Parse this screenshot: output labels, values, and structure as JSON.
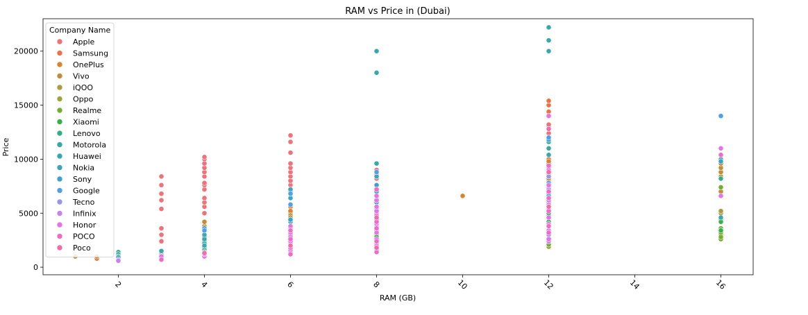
{
  "chart_data": {
    "type": "scatter",
    "title": "RAM vs Price in (Dubai)",
    "xlabel": "RAM (GB)",
    "ylabel": "Price",
    "xlim": [
      0.25,
      16.75
    ],
    "ylim": [
      -700,
      23000
    ],
    "xticks": [
      2,
      4,
      6,
      8,
      10,
      12,
      14,
      16
    ],
    "yticks": [
      0,
      5000,
      10000,
      15000,
      20000
    ],
    "grid": false,
    "legend": {
      "title": "Company Name",
      "placement": "top-left"
    },
    "series": [
      {
        "name": "Apple",
        "color": "#f0717a",
        "points": [
          [
            3,
            2400
          ],
          [
            3,
            3000
          ],
          [
            3,
            3600
          ],
          [
            3,
            5400
          ],
          [
            3,
            6200
          ],
          [
            3,
            6800
          ],
          [
            3,
            7600
          ],
          [
            3,
            8400
          ],
          [
            4,
            4200
          ],
          [
            4,
            5000
          ],
          [
            4,
            5600
          ],
          [
            4,
            6000
          ],
          [
            4,
            6400
          ],
          [
            4,
            7200
          ],
          [
            4,
            7600
          ],
          [
            4,
            7800
          ],
          [
            4,
            8400
          ],
          [
            4,
            8800
          ],
          [
            4,
            9200
          ],
          [
            4,
            9600
          ],
          [
            4,
            10000
          ],
          [
            4,
            10200
          ],
          [
            6,
            6400
          ],
          [
            6,
            7000
          ],
          [
            6,
            7600
          ],
          [
            6,
            8000
          ],
          [
            6,
            8400
          ],
          [
            6,
            8800
          ],
          [
            6,
            9200
          ],
          [
            6,
            9600
          ],
          [
            6,
            10600
          ],
          [
            6,
            11600
          ],
          [
            6,
            12200
          ],
          [
            8,
            8200
          ],
          [
            8,
            8600
          ],
          [
            8,
            9000
          ],
          [
            12,
            7000
          ],
          [
            12,
            8000
          ],
          [
            12,
            8800
          ],
          [
            12,
            9200
          ],
          [
            12,
            10000
          ],
          [
            12,
            11000
          ],
          [
            12,
            11600
          ],
          [
            12,
            12400
          ],
          [
            12,
            13000
          ],
          [
            12,
            13200
          ]
        ]
      },
      {
        "name": "Samsung",
        "color": "#ee7243",
        "points": [
          [
            1.5,
            800
          ],
          [
            3,
            1200
          ],
          [
            4,
            2800
          ],
          [
            6,
            5000
          ],
          [
            6,
            5600
          ],
          [
            8,
            2200
          ],
          [
            12,
            9600
          ],
          [
            12,
            10000
          ],
          [
            12,
            14400
          ],
          [
            12,
            15000
          ],
          [
            12,
            15400
          ]
        ]
      },
      {
        "name": "OnePlus",
        "color": "#d7842f",
        "points": [
          [
            4,
            3800
          ],
          [
            6,
            5200
          ],
          [
            8,
            1800
          ],
          [
            10,
            6600
          ],
          [
            12,
            8200
          ],
          [
            12,
            8600
          ],
          [
            12,
            9800
          ]
        ]
      },
      {
        "name": "Vivo",
        "color": "#c08e39",
        "points": [
          [
            1,
            1000
          ],
          [
            1.5,
            1000
          ],
          [
            4,
            4200
          ],
          [
            6,
            4800
          ],
          [
            12,
            2000
          ],
          [
            16,
            7000
          ],
          [
            16,
            8400
          ],
          [
            16,
            8800
          ],
          [
            16,
            9200
          ],
          [
            16,
            9600
          ]
        ]
      },
      {
        "name": "iQOO",
        "color": "#ac9c3d",
        "points": [
          [
            6,
            4600
          ],
          [
            12,
            4800
          ],
          [
            16,
            5000
          ],
          [
            16,
            5200
          ]
        ]
      },
      {
        "name": "Oppo",
        "color": "#9ba539",
        "points": [
          [
            4,
            2000
          ],
          [
            6,
            4400
          ],
          [
            8,
            1700
          ],
          [
            12,
            1900
          ],
          [
            16,
            3000
          ],
          [
            16,
            4400
          ]
        ]
      },
      {
        "name": "Realme",
        "color": "#73ae31",
        "points": [
          [
            4,
            2400
          ],
          [
            6,
            3600
          ],
          [
            8,
            3000
          ],
          [
            12,
            2100
          ],
          [
            16,
            2600
          ],
          [
            16,
            2800
          ],
          [
            16,
            3200
          ],
          [
            16,
            3600
          ],
          [
            16,
            7400
          ]
        ]
      },
      {
        "name": "Xiaomi",
        "color": "#33b249",
        "points": [
          [
            4,
            1800
          ],
          [
            6,
            3000
          ],
          [
            8,
            2800
          ],
          [
            12,
            4200
          ],
          [
            16,
            3400
          ],
          [
            16,
            4200
          ]
        ]
      },
      {
        "name": "Lenovo",
        "color": "#35ae88",
        "points": [
          [
            2,
            1400
          ],
          [
            4,
            1600
          ],
          [
            6,
            3200
          ],
          [
            12,
            5000
          ],
          [
            16,
            8200
          ]
        ]
      },
      {
        "name": "Motorola",
        "color": "#37aaa0",
        "points": [
          [
            2,
            1200
          ],
          [
            2,
            800
          ],
          [
            3,
            1400
          ],
          [
            4,
            2200
          ],
          [
            6,
            4200
          ],
          [
            8,
            3400
          ],
          [
            12,
            6000
          ],
          [
            12,
            11000
          ]
        ]
      },
      {
        "name": "Huawei",
        "color": "#39a8ac",
        "points": [
          [
            2,
            1000
          ],
          [
            3,
            1500
          ],
          [
            4,
            2600
          ],
          [
            6,
            4400
          ],
          [
            8,
            9600
          ],
          [
            8,
            18000
          ],
          [
            8,
            20000
          ],
          [
            12,
            10400
          ],
          [
            12,
            11600
          ],
          [
            12,
            20000
          ],
          [
            12,
            21000
          ],
          [
            12,
            22200
          ],
          [
            16,
            4600
          ]
        ]
      },
      {
        "name": "Nokia",
        "color": "#3ba6b8",
        "points": [
          [
            2,
            900
          ],
          [
            4,
            2000
          ],
          [
            4,
            3000
          ],
          [
            6,
            7200
          ],
          [
            8,
            7000
          ],
          [
            8,
            8400
          ],
          [
            12,
            6800
          ],
          [
            12,
            12000
          ],
          [
            16,
            10000
          ]
        ]
      },
      {
        "name": "Sony",
        "color": "#3aa2cf",
        "points": [
          [
            4,
            3600
          ],
          [
            6,
            4400
          ],
          [
            6,
            6400
          ],
          [
            8,
            6000
          ],
          [
            8,
            7600
          ],
          [
            12,
            7400
          ],
          [
            12,
            11800
          ],
          [
            16,
            9800
          ]
        ]
      },
      {
        "name": "Google",
        "color": "#4ea0ea",
        "points": [
          [
            4,
            3400
          ],
          [
            6,
            5800
          ],
          [
            6,
            6800
          ],
          [
            8,
            5400
          ],
          [
            8,
            8800
          ],
          [
            12,
            6600
          ],
          [
            12,
            7800
          ],
          [
            12,
            12000
          ],
          [
            16,
            14000
          ]
        ]
      },
      {
        "name": "Tecno",
        "color": "#9a95ec",
        "points": [
          [
            2,
            700
          ],
          [
            3,
            1000
          ],
          [
            4,
            1400
          ],
          [
            6,
            2000
          ],
          [
            8,
            1400
          ],
          [
            8,
            5000
          ],
          [
            12,
            3000
          ],
          [
            12,
            8400
          ]
        ]
      },
      {
        "name": "Infinix",
        "color": "#c584ec",
        "points": [
          [
            2,
            600
          ],
          [
            3,
            800
          ],
          [
            4,
            1200
          ],
          [
            6,
            1400
          ],
          [
            6,
            2200
          ],
          [
            8,
            1600
          ],
          [
            8,
            3800
          ],
          [
            12,
            2400
          ],
          [
            12,
            5800
          ],
          [
            12,
            7200
          ]
        ]
      },
      {
        "name": "Honor",
        "color": "#e572e8",
        "points": [
          [
            3,
            1000
          ],
          [
            4,
            1000
          ],
          [
            6,
            1600
          ],
          [
            6,
            2400
          ],
          [
            6,
            2800
          ],
          [
            6,
            3200
          ],
          [
            6,
            3800
          ],
          [
            8,
            2000
          ],
          [
            8,
            2600
          ],
          [
            8,
            3200
          ],
          [
            8,
            4000
          ],
          [
            8,
            4400
          ],
          [
            8,
            4800
          ],
          [
            8,
            5200
          ],
          [
            8,
            5600
          ],
          [
            8,
            6200
          ],
          [
            8,
            6600
          ],
          [
            12,
            2600
          ],
          [
            12,
            3400
          ],
          [
            12,
            4000
          ],
          [
            12,
            4600
          ],
          [
            12,
            5400
          ],
          [
            12,
            6200
          ],
          [
            12,
            7600
          ],
          [
            12,
            9000
          ],
          [
            12,
            14000
          ],
          [
            16,
            6600
          ],
          [
            16,
            11000
          ]
        ]
      },
      {
        "name": "POCO",
        "color": "#f06bc9",
        "points": [
          [
            3,
            700
          ],
          [
            4,
            1200
          ],
          [
            6,
            1200
          ],
          [
            6,
            1800
          ],
          [
            6,
            2600
          ],
          [
            6,
            3400
          ],
          [
            8,
            1400
          ],
          [
            8,
            2400
          ],
          [
            8,
            3600
          ],
          [
            8,
            4200
          ],
          [
            8,
            7200
          ],
          [
            12,
            3200
          ],
          [
            12,
            3800
          ],
          [
            12,
            5200
          ],
          [
            12,
            6400
          ],
          [
            12,
            7000
          ],
          [
            12,
            9400
          ],
          [
            16,
            10400
          ]
        ]
      },
      {
        "name": "Poco",
        "color": "#f26ba9",
        "points": [
          [
            4,
            1300
          ],
          [
            6,
            2000
          ],
          [
            8,
            1800
          ],
          [
            8,
            4600
          ],
          [
            12,
            5600
          ],
          [
            12,
            8800
          ],
          [
            12,
            12800
          ]
        ]
      }
    ]
  }
}
